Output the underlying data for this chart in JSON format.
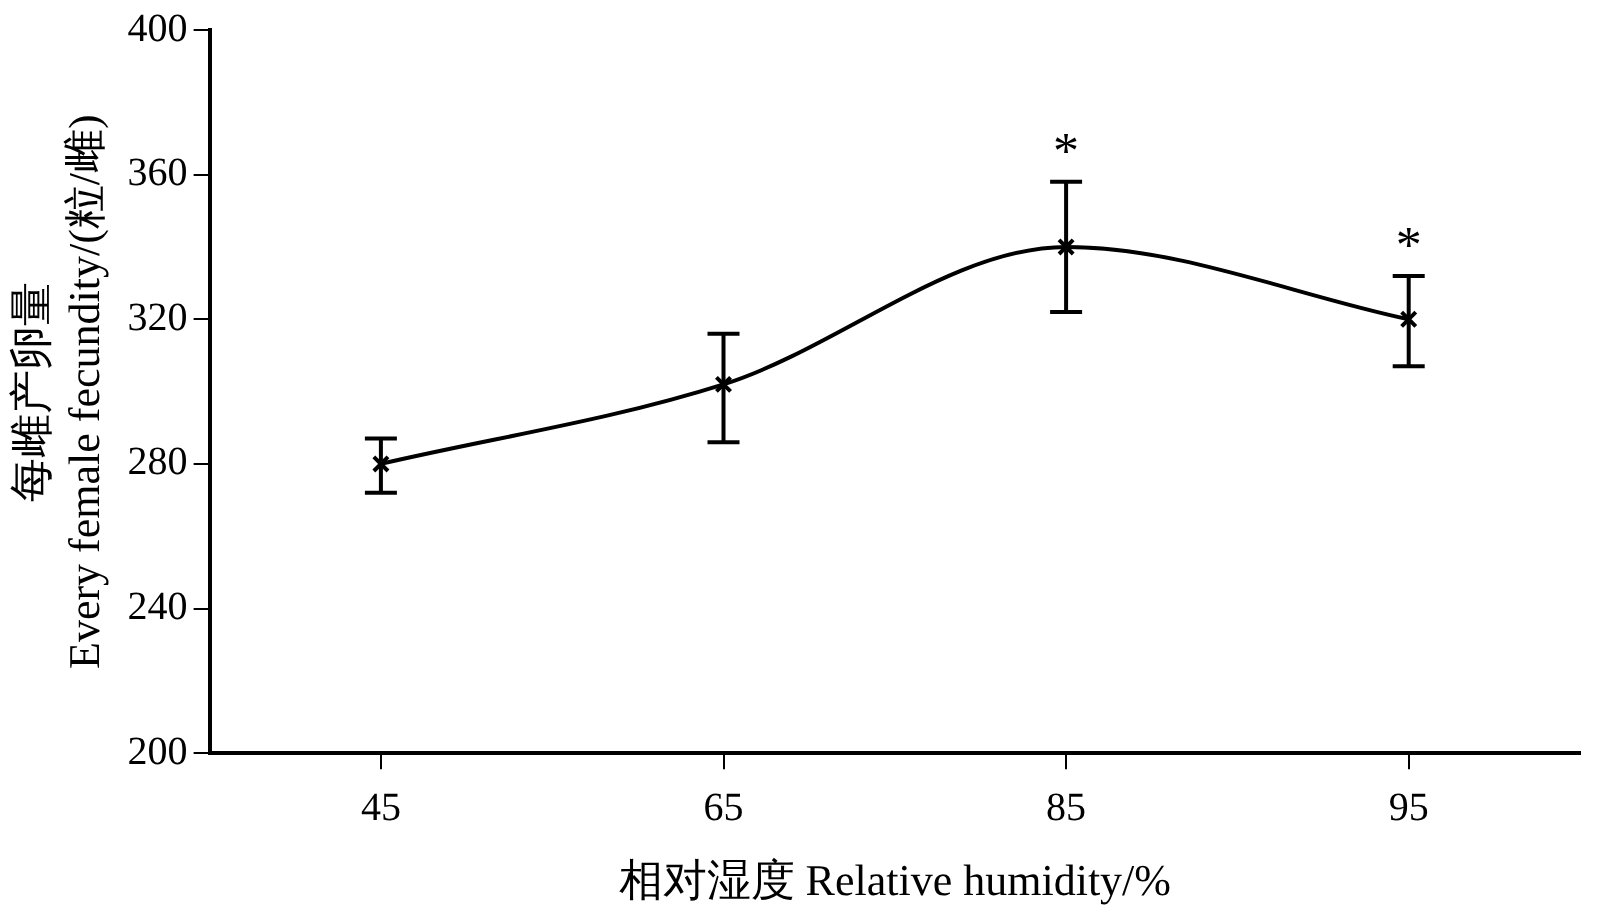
{
  "chart_data": {
    "type": "line",
    "xlabel": "相对湿度 Relative humidity/%",
    "ylabel": "每雌产卵量\nEvery female fecundity/(粒/雌)",
    "categories": [
      "45",
      "65",
      "85",
      "95"
    ],
    "series": [
      {
        "color": "#000000",
        "values": [
          280,
          302,
          340,
          320
        ],
        "errors": [
          [
            272,
            287
          ],
          [
            286,
            316
          ],
          [
            322,
            358
          ],
          [
            307,
            332
          ]
        ]
      }
    ],
    "ylim": [
      200,
      400
    ],
    "yticks": [
      200,
      240,
      280,
      320,
      360,
      400
    ],
    "grid": false,
    "legend": false,
    "marker": "cross",
    "line_style": "solid",
    "annotations": [
      "*",
      "*"
    ]
  }
}
